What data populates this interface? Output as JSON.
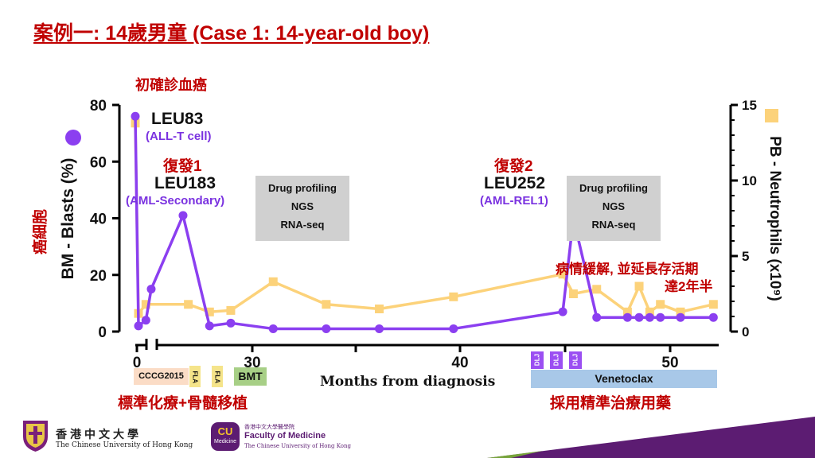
{
  "title": "案例一: 14歲男童 (Case 1: 14-year-old boy)",
  "labels": {
    "initial_diagnosis": "初確診血癌",
    "relapse1": "復發1",
    "relapse2": "復發2",
    "leu83": "LEU83",
    "leu83_sub": "(ALL-T cell)",
    "leu183": "LEU183",
    "leu183_sub": "(AML-Secondary)",
    "leu252": "LEU252",
    "leu252_sub": "(AML-REL1)",
    "remission_line1": "病情緩解, 並延長存活期",
    "remission_line2": "達2年半",
    "cancer_cells": "癌細胞",
    "standard_treatment": "標準化療+骨髓移植",
    "precision_treatment": "採用精準治療用藥"
  },
  "profiling_boxes": [
    [
      "Drug profiling",
      "NGS",
      "RNA-seq"
    ],
    [
      "Drug profiling",
      "NGS",
      "RNA-seq"
    ]
  ],
  "treatments": {
    "cccg": "CCCG2015",
    "fla1": "FLA",
    "fla2": "FLA",
    "bmt": "BMT",
    "dlj": [
      "DLJ",
      "DLJ",
      "DLJ"
    ],
    "venetoclax": "Venetoclax"
  },
  "logos": {
    "cuhk_chinese": "香港中文大學",
    "cuhk_english": "The Chinese University of Hong Kong",
    "cu_badge_line1": "CU",
    "cu_badge_line2": "Medicine",
    "fom_chinese": "香港中文大學醫學院",
    "fom_english": "Faculty of Medicine",
    "fom_sub": "The Chinese University of Hong Kong"
  },
  "colors": {
    "blasts": "#8b3ff0",
    "neutrophils": "#fcd27a",
    "title_red": "#c00000",
    "cccg_bg": "#fbdcc6",
    "fla_bg": "#f5e48a",
    "bmt_bg": "#a7cf86",
    "venetoclax_bg": "#a8c8e8",
    "dlj_bg": "#9b4ff2",
    "footer_purple": "#5c1c72",
    "footer_green": "#76a33a"
  },
  "chart_data": {
    "type": "line",
    "xlabel": "Months from diagnosis",
    "ylabel_left": "BM - Blasts (%)",
    "ylabel_right": "PB - Neutrophils (x10⁹)",
    "xlim": [
      0,
      55
    ],
    "ylim_left": [
      0,
      80
    ],
    "ylim_right": [
      0,
      15
    ],
    "xticks": [
      0,
      30,
      40,
      50
    ],
    "yticks_left": [
      0,
      20,
      40,
      60,
      80
    ],
    "yticks_right": [
      0,
      5,
      10,
      15
    ],
    "grid": false,
    "series": [
      {
        "axis": "left",
        "marker": "circle",
        "x": [
          0,
          0.3,
          1,
          1.5,
          4.5,
          7,
          9,
          13,
          18,
          23,
          30,
          40.3,
          41.3,
          43.5,
          46.4,
          47.5,
          48.5,
          49.5,
          51.4,
          54.5
        ],
        "values": [
          76,
          2,
          4,
          15,
          41,
          2,
          3,
          1,
          1,
          1,
          1,
          7,
          40,
          5,
          5,
          5,
          5,
          5,
          5,
          5
        ]
      },
      {
        "axis": "right",
        "marker": "square",
        "x": [
          0,
          0.3,
          1,
          5,
          7,
          9,
          13,
          18,
          23,
          30,
          40.3,
          41.3,
          43.5,
          46.4,
          47.5,
          48.5,
          49.5,
          51.4,
          54.5
        ],
        "values": [
          13.8,
          1.2,
          1.8,
          1.8,
          1.3,
          1.4,
          3.3,
          1.8,
          1.5,
          2.3,
          3.8,
          2.5,
          2.8,
          1.3,
          3.0,
          1.3,
          1.8,
          1.3,
          1.8
        ]
      }
    ]
  }
}
